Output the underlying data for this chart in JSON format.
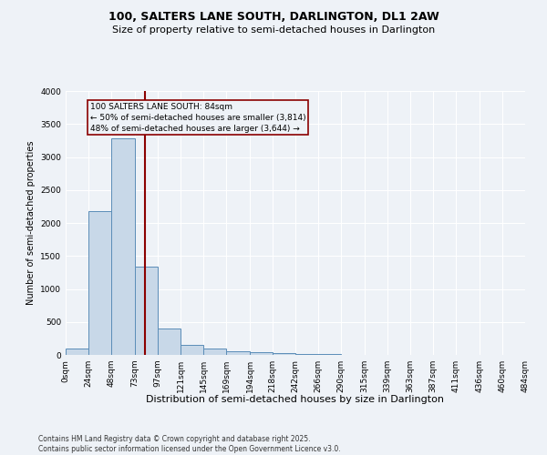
{
  "title1": "100, SALTERS LANE SOUTH, DARLINGTON, DL1 2AW",
  "title2": "Size of property relative to semi-detached houses in Darlington",
  "xlabel": "Distribution of semi-detached houses by size in Darlington",
  "ylabel": "Number of semi-detached properties",
  "footer1": "Contains HM Land Registry data © Crown copyright and database right 2025.",
  "footer2": "Contains public sector information licensed under the Open Government Licence v3.0.",
  "annotation_title": "100 SALTERS LANE SOUTH: 84sqm",
  "annotation_line1": "← 50% of semi-detached houses are smaller (3,814)",
  "annotation_line2": "48% of semi-detached houses are larger (3,644) →",
  "property_size": 84,
  "bin_edges": [
    0,
    24,
    48,
    73,
    97,
    121,
    145,
    169,
    194,
    218,
    242,
    266,
    290,
    315,
    339,
    363,
    387,
    411,
    436,
    460,
    484
  ],
  "bin_labels": [
    "0sqm",
    "24sqm",
    "48sqm",
    "73sqm",
    "97sqm",
    "121sqm",
    "145sqm",
    "169sqm",
    "194sqm",
    "218sqm",
    "242sqm",
    "266sqm",
    "290sqm",
    "315sqm",
    "339sqm",
    "363sqm",
    "387sqm",
    "411sqm",
    "436sqm",
    "460sqm",
    "484sqm"
  ],
  "bar_values": [
    100,
    2180,
    3280,
    1340,
    400,
    155,
    90,
    50,
    40,
    30,
    20,
    10,
    5,
    3,
    2,
    1,
    1,
    0,
    0,
    0
  ],
  "bar_color": "#c8d8e8",
  "bar_edge_color": "#5b8db8",
  "vline_color": "#8b0000",
  "vline_x": 84,
  "annotation_box_color": "#8b0000",
  "background_color": "#eef2f7",
  "grid_color": "#ffffff",
  "ylim": [
    0,
    4000
  ],
  "yticks": [
    0,
    500,
    1000,
    1500,
    2000,
    2500,
    3000,
    3500,
    4000
  ],
  "title1_fontsize": 9,
  "title2_fontsize": 8,
  "xlabel_fontsize": 8,
  "ylabel_fontsize": 7,
  "tick_fontsize": 6.5,
  "footer_fontsize": 5.5,
  "annotation_fontsize": 6.5
}
